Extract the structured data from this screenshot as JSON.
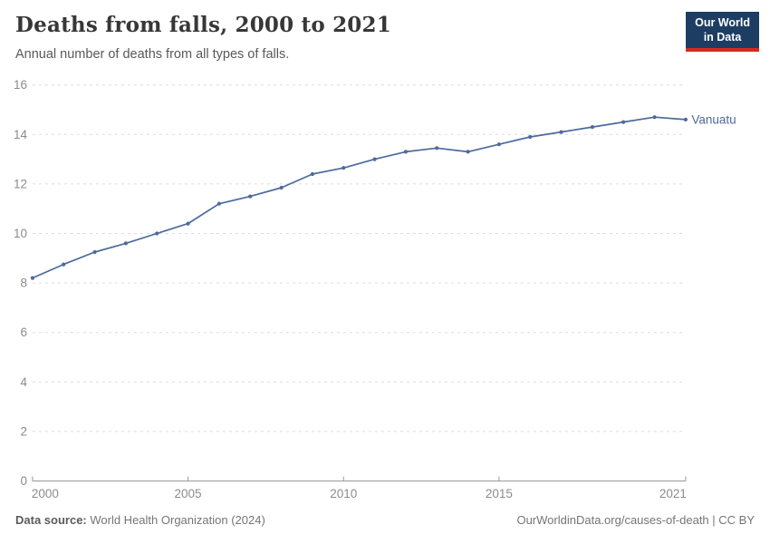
{
  "header": {
    "title": "Deaths from falls, 2000 to 2021",
    "subtitle": "Annual number of deaths from all types of falls.",
    "logo": {
      "line1": "Our World",
      "line2": "in Data"
    }
  },
  "chart_data": {
    "type": "line",
    "title": "Deaths from falls, 2000 to 2021",
    "subtitle": "Annual number of deaths from all types of falls.",
    "xlabel": "",
    "ylabel": "",
    "x": [
      2000,
      2001,
      2002,
      2003,
      2004,
      2005,
      2006,
      2007,
      2008,
      2009,
      2010,
      2011,
      2012,
      2013,
      2014,
      2015,
      2016,
      2017,
      2018,
      2019,
      2020,
      2021
    ],
    "series": [
      {
        "name": "Vanuatu",
        "color": "#4C6A9C",
        "values": [
          8.2,
          8.75,
          9.25,
          9.6,
          10.0,
          10.4,
          11.2,
          11.5,
          11.85,
          12.4,
          12.65,
          13.0,
          13.3,
          13.45,
          13.3,
          13.6,
          13.9,
          14.1,
          14.3,
          14.5,
          14.7,
          14.6
        ]
      }
    ],
    "xlim": [
      2000,
      2021
    ],
    "ylim": [
      0,
      16
    ],
    "x_ticks": [
      2000,
      2005,
      2010,
      2015,
      2021
    ],
    "y_ticks": [
      0,
      2,
      4,
      6,
      8,
      10,
      12,
      14,
      16
    ],
    "grid": "horizontal-dashed",
    "legend_position": "end-of-line",
    "end_label": "Vanuatu"
  },
  "colors": {
    "line": "#4C6A9C",
    "end_label": "#4C6A9C",
    "gridline": "#dcdcdc",
    "axis_line": "#999999",
    "tick_label": "#8c8c8c",
    "logo_bg": "#1d3d63",
    "logo_stripe": "#d8281e"
  },
  "footer": {
    "source_label": "Data source:",
    "source_value": " World Health Organization (2024)",
    "right_note": "OurWorldinData.org/causes-of-death | CC BY"
  }
}
